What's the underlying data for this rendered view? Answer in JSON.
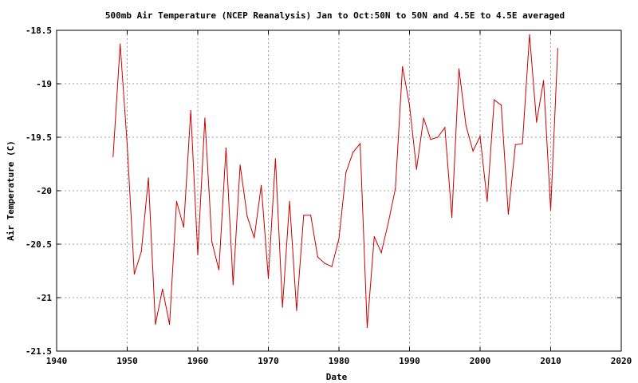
{
  "chart_data": {
    "type": "line",
    "title": "500mb Air Temperature (NCEP Reanalysis) Jan to Oct:50N to 50N and 4.5E to 4.5E averaged",
    "xlabel": "Date",
    "ylabel": "Air Temperature (C)",
    "xlim": [
      1940,
      2020
    ],
    "ylim": [
      -21.5,
      -18.5
    ],
    "x_ticks": [
      1940,
      1950,
      1960,
      1970,
      1980,
      1990,
      2000,
      2010,
      2020
    ],
    "x_tick_labels": [
      "1940",
      "1950",
      "1960",
      "1970",
      "1980",
      "1990",
      "2000",
      "2010",
      "2020"
    ],
    "y_ticks": [
      -18.5,
      -19,
      -19.5,
      -20,
      -20.5,
      -21,
      -21.5
    ],
    "y_tick_labels": [
      "-18.5",
      "-19",
      "-19.5",
      "-20",
      "-20.5",
      "-21",
      "-21.5"
    ],
    "grid": true,
    "line_color": "#cc0000",
    "series": [
      {
        "x": [
          1948,
          1949,
          1950,
          1951,
          1952,
          1953,
          1954,
          1955,
          1956,
          1957,
          1958,
          1959,
          1960,
          1961,
          1962,
          1963,
          1964,
          1965,
          1966,
          1967,
          1968,
          1969,
          1970,
          1971,
          1972,
          1973,
          1974,
          1975,
          1976,
          1977,
          1978,
          1979,
          1980,
          1981,
          1982,
          1983,
          1984,
          1985,
          1986,
          1987,
          1988,
          1989,
          1990,
          1991,
          1992,
          1993,
          1994,
          1995,
          1996,
          1997,
          1998,
          1999,
          2000,
          2001,
          2002,
          2003,
          2004,
          2005,
          2006,
          2007,
          2008,
          2009,
          2010,
          2011
        ],
        "values": [
          -19.68,
          -18.63,
          -19.57,
          -20.78,
          -20.57,
          -19.88,
          -21.25,
          -20.92,
          -21.25,
          -20.1,
          -20.34,
          -19.25,
          -20.6,
          -19.32,
          -20.48,
          -20.74,
          -19.6,
          -20.88,
          -19.76,
          -20.24,
          -20.44,
          -19.95,
          -20.82,
          -19.7,
          -21.09,
          -20.1,
          -21.12,
          -20.23,
          -20.23,
          -20.62,
          -20.68,
          -20.71,
          -20.45,
          -19.83,
          -19.64,
          -19.56,
          -21.28,
          -20.43,
          -20.58,
          -20.3,
          -19.98,
          -18.84,
          -19.2,
          -19.8,
          -19.32,
          -19.52,
          -19.5,
          -19.41,
          -20.25,
          -18.86,
          -19.39,
          -19.63,
          -19.49,
          -20.1,
          -19.15,
          -19.2,
          -20.22,
          -19.57,
          -19.56,
          -18.54,
          -19.36,
          -18.97,
          -20.18,
          -18.67
        ]
      }
    ]
  }
}
